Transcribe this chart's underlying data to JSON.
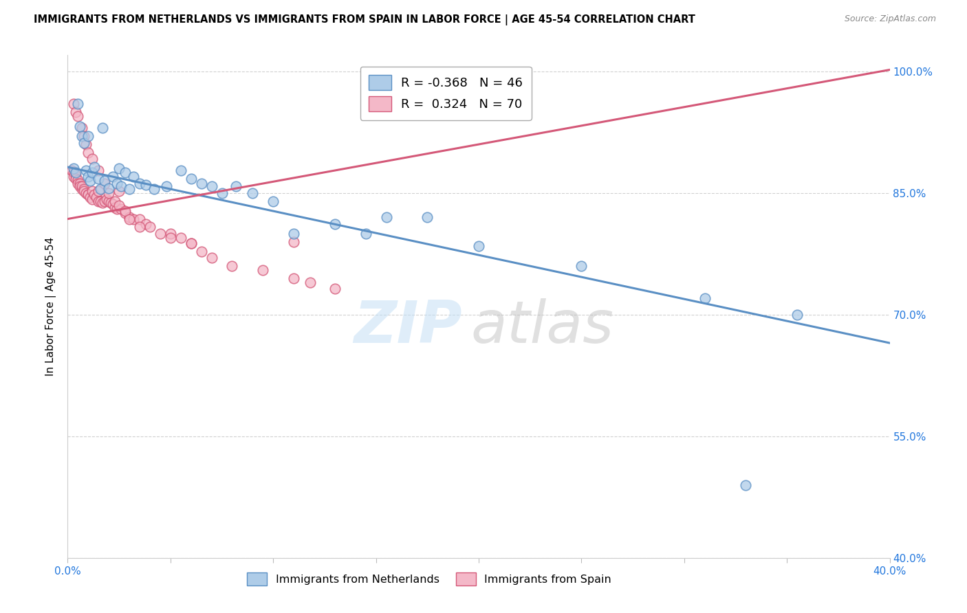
{
  "title": "IMMIGRANTS FROM NETHERLANDS VS IMMIGRANTS FROM SPAIN IN LABOR FORCE | AGE 45-54 CORRELATION CHART",
  "source": "Source: ZipAtlas.com",
  "ylabel": "In Labor Force | Age 45-54",
  "xlim": [
    0.0,
    0.4
  ],
  "ylim": [
    0.4,
    1.02
  ],
  "blue_color": "#aecce8",
  "blue_edge_color": "#5a8fc4",
  "pink_color": "#f4b8c8",
  "pink_edge_color": "#d45878",
  "blue_line_color": "#5a8fc4",
  "pink_line_color": "#d45878",
  "legend_blue_R": "-0.368",
  "legend_blue_N": "46",
  "legend_pink_R": "0.324",
  "legend_pink_N": "70",
  "blue_line_x0": 0.0,
  "blue_line_y0": 0.882,
  "blue_line_x1": 0.4,
  "blue_line_y1": 0.665,
  "pink_line_x0": 0.0,
  "pink_line_y0": 0.818,
  "pink_line_x1": 0.4,
  "pink_line_y1": 1.002,
  "blue_x": [
    0.003,
    0.004,
    0.005,
    0.006,
    0.007,
    0.008,
    0.009,
    0.01,
    0.01,
    0.011,
    0.012,
    0.013,
    0.015,
    0.016,
    0.017,
    0.018,
    0.02,
    0.022,
    0.024,
    0.025,
    0.026,
    0.028,
    0.03,
    0.032,
    0.035,
    0.038,
    0.042,
    0.048,
    0.055,
    0.06,
    0.065,
    0.07,
    0.075,
    0.082,
    0.09,
    0.1,
    0.11,
    0.13,
    0.145,
    0.155,
    0.175,
    0.2,
    0.25,
    0.31,
    0.33,
    0.355
  ],
  "blue_y": [
    0.88,
    0.875,
    0.96,
    0.932,
    0.92,
    0.912,
    0.878,
    0.87,
    0.92,
    0.865,
    0.875,
    0.882,
    0.868,
    0.855,
    0.93,
    0.865,
    0.856,
    0.87,
    0.862,
    0.88,
    0.858,
    0.875,
    0.855,
    0.87,
    0.862,
    0.86,
    0.855,
    0.858,
    0.878,
    0.868,
    0.862,
    0.858,
    0.85,
    0.858,
    0.85,
    0.84,
    0.8,
    0.812,
    0.8,
    0.82,
    0.82,
    0.785,
    0.76,
    0.72,
    0.49,
    0.7
  ],
  "pink_x": [
    0.002,
    0.003,
    0.003,
    0.004,
    0.004,
    0.005,
    0.005,
    0.006,
    0.006,
    0.007,
    0.007,
    0.008,
    0.008,
    0.009,
    0.01,
    0.01,
    0.011,
    0.012,
    0.012,
    0.013,
    0.014,
    0.015,
    0.015,
    0.016,
    0.017,
    0.018,
    0.019,
    0.02,
    0.021,
    0.022,
    0.023,
    0.024,
    0.025,
    0.026,
    0.028,
    0.03,
    0.032,
    0.035,
    0.038,
    0.04,
    0.045,
    0.05,
    0.055,
    0.06,
    0.065,
    0.07,
    0.08,
    0.095,
    0.11,
    0.118,
    0.13,
    0.003,
    0.004,
    0.005,
    0.007,
    0.008,
    0.009,
    0.01,
    0.012,
    0.015,
    0.018,
    0.02,
    0.023,
    0.025,
    0.028,
    0.03,
    0.035,
    0.05,
    0.06,
    0.11
  ],
  "pink_y": [
    0.878,
    0.875,
    0.87,
    0.872,
    0.868,
    0.866,
    0.862,
    0.862,
    0.858,
    0.855,
    0.858,
    0.855,
    0.852,
    0.85,
    0.848,
    0.848,
    0.845,
    0.842,
    0.852,
    0.848,
    0.845,
    0.84,
    0.852,
    0.84,
    0.838,
    0.84,
    0.842,
    0.84,
    0.838,
    0.836,
    0.832,
    0.83,
    0.852,
    0.83,
    0.825,
    0.82,
    0.818,
    0.818,
    0.812,
    0.808,
    0.8,
    0.8,
    0.795,
    0.788,
    0.778,
    0.77,
    0.76,
    0.755,
    0.745,
    0.74,
    0.732,
    0.96,
    0.95,
    0.945,
    0.93,
    0.92,
    0.91,
    0.9,
    0.892,
    0.878,
    0.862,
    0.85,
    0.84,
    0.835,
    0.828,
    0.818,
    0.808,
    0.795,
    0.788,
    0.79
  ]
}
